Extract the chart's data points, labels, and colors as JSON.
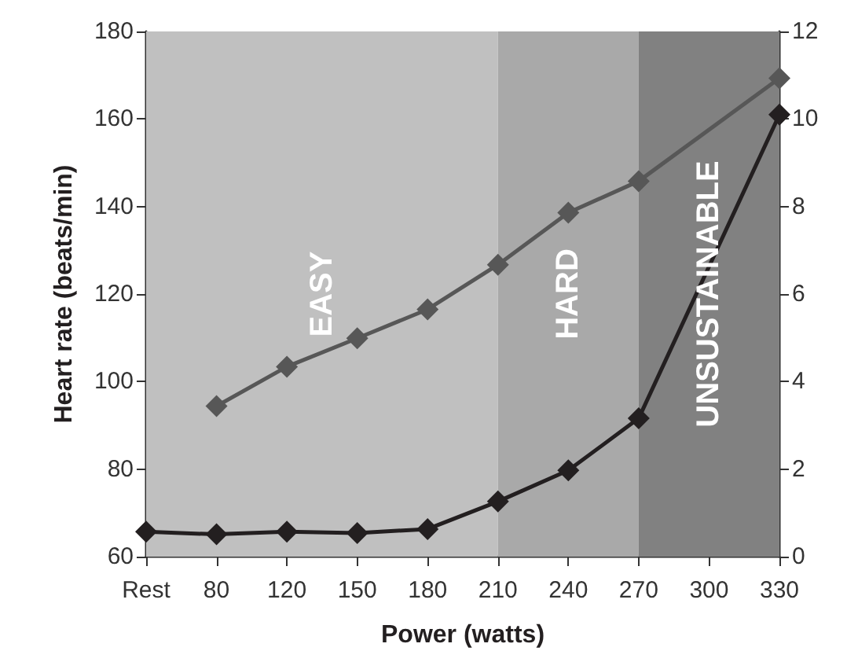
{
  "chart_data": {
    "type": "line",
    "xlabel": "Power (watts)",
    "ylabel": "Heart rate (beats/min)",
    "categories": [
      "Rest",
      "80",
      "120",
      "150",
      "180",
      "210",
      "240",
      "270",
      "300",
      "330"
    ],
    "series": [
      {
        "color": "#575757",
        "values": [
          null,
          94.4,
          103.4,
          109.9,
          116.5,
          126.7,
          138.6,
          145.8,
          null,
          169.3
        ]
      },
      {
        "color": "#231f20",
        "axis": "y2",
        "values": [
          0.57,
          0.51,
          0.57,
          0.54,
          0.63,
          1.26,
          1.97,
          3.16,
          null,
          10.1
        ]
      }
    ],
    "ylim": [
      60,
      180
    ],
    "yticks": [
      60,
      80,
      100,
      120,
      140,
      160,
      180
    ],
    "y2lim": [
      0,
      12
    ],
    "y2ticks": [
      0,
      2,
      4,
      6,
      8,
      10,
      12
    ],
    "bands": [
      {
        "axis": "x",
        "from": "Rest",
        "to": "210",
        "label": "EASY",
        "color": "#c0c0c0"
      },
      {
        "axis": "x",
        "from": "210",
        "to": "270",
        "label": "HARD",
        "color": "#a9a9a9"
      },
      {
        "axis": "x",
        "from": "270",
        "to": "330",
        "label": "UNSUSTAINABLE",
        "color": "#818181"
      }
    ],
    "marker": "diamond",
    "line_style": "solid",
    "grid": false
  }
}
